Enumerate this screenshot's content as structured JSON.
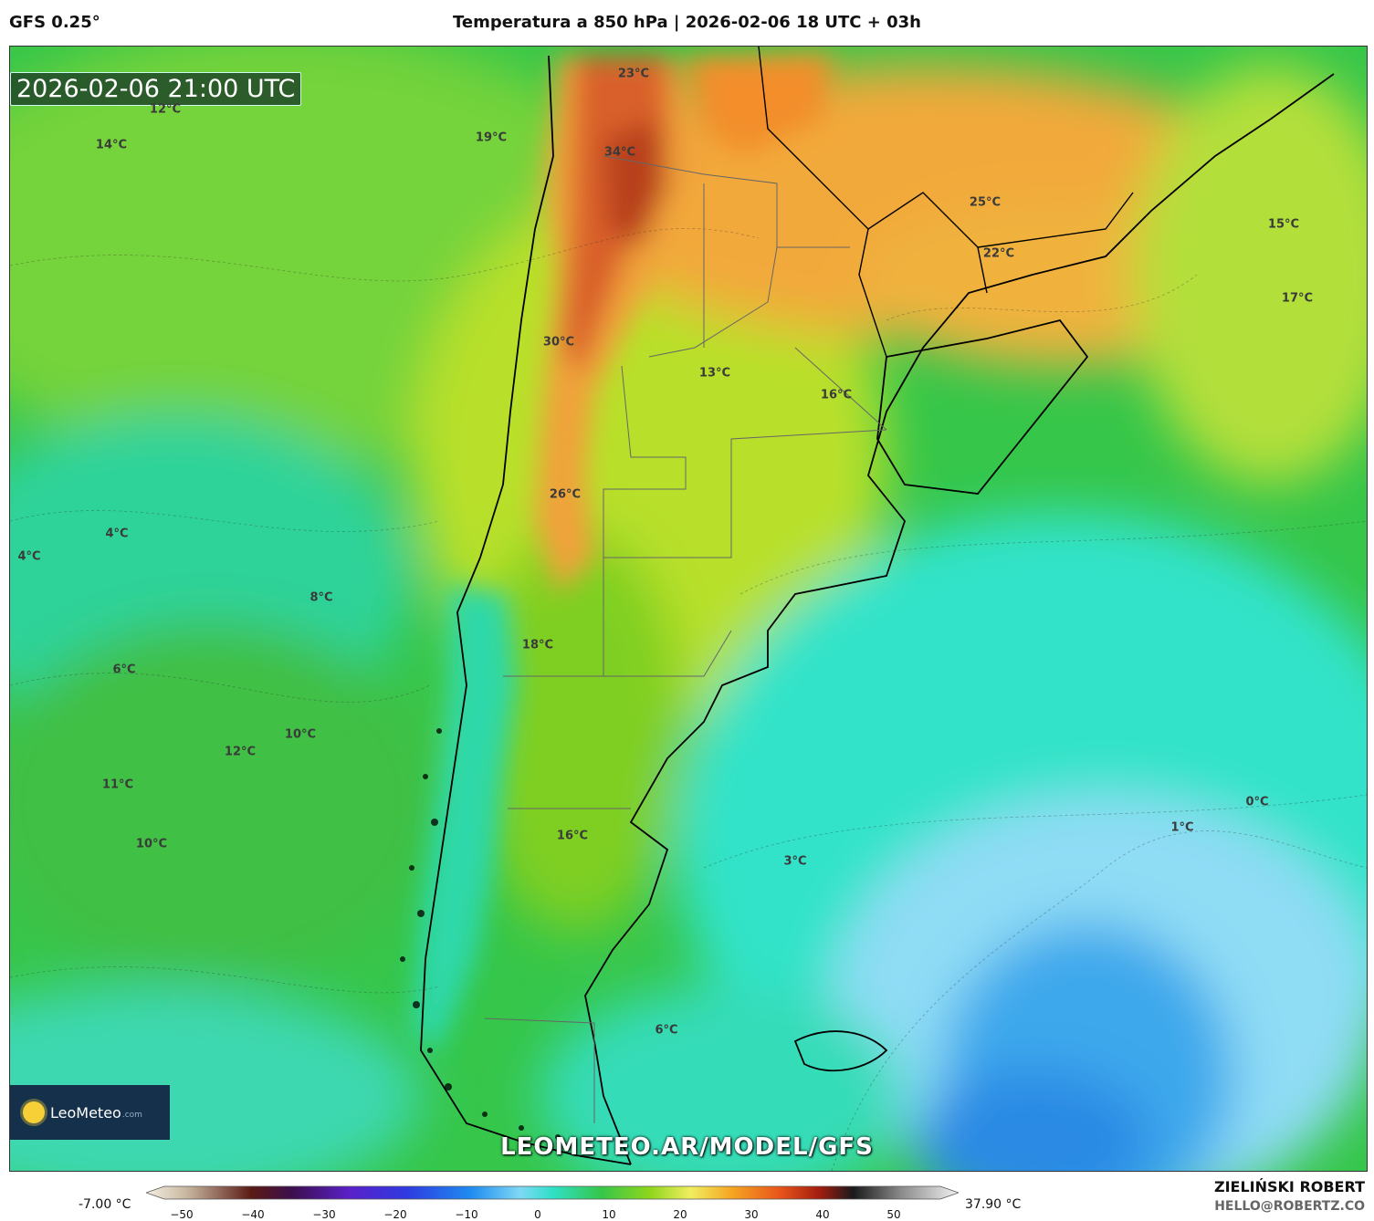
{
  "header": {
    "model": "GFS 0.25°",
    "title": "Temperatura a 850 hPa | 2026-02-06 18 UTC + 03h"
  },
  "map": {
    "valid_time": "2026-02-06 21:00 UTC",
    "temperature_labels": [
      {
        "text": "12°C"
      },
      {
        "text": "14°C"
      },
      {
        "text": "19°C"
      },
      {
        "text": "23°C"
      },
      {
        "text": "34°C"
      },
      {
        "text": "25°C"
      },
      {
        "text": "22°C"
      },
      {
        "text": "15°C"
      },
      {
        "text": "17°C"
      },
      {
        "text": "30°C"
      },
      {
        "text": "13°C"
      },
      {
        "text": "16°C"
      },
      {
        "text": "4°C"
      },
      {
        "text": "4°C"
      },
      {
        "text": "26°C"
      },
      {
        "text": "8°C"
      },
      {
        "text": "18°C"
      },
      {
        "text": "6°C"
      },
      {
        "text": "10°C"
      },
      {
        "text": "12°C"
      },
      {
        "text": "11°C"
      },
      {
        "text": "10°C"
      },
      {
        "text": "16°C"
      },
      {
        "text": "3°C"
      },
      {
        "text": "1°C"
      },
      {
        "text": "0°C"
      },
      {
        "text": "6°C"
      }
    ],
    "watermark": "LEOMETEO.AR/MODEL/GFS",
    "logo": {
      "name": "LeoMeteo",
      "suffix": ".com"
    }
  },
  "colorbar": {
    "min_label": "-7.00 °C",
    "max_label": "37.90 °C",
    "ticks": [
      "−50",
      "−40",
      "−30",
      "−20",
      "−10",
      "0",
      "10",
      "20",
      "30",
      "40",
      "50"
    ]
  },
  "footer": {
    "author": "ZIELIŃSKI ROBERT",
    "email": "HELLO@ROBERTZ.CO"
  },
  "colors": {
    "cold_deep": "#1e8fe8",
    "cold": "#7fd8f5",
    "cyan": "#2fe0c8",
    "green": "#3cc04a",
    "lime": "#8fd61c",
    "yellow": "#f0ee60",
    "orange": "#f5a623",
    "hot": "#d8541a"
  }
}
